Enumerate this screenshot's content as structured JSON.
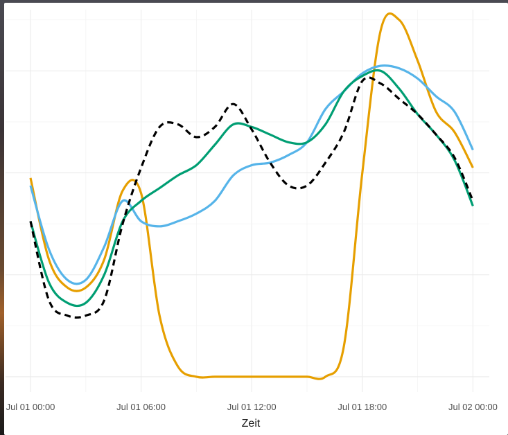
{
  "chart_data": {
    "type": "line",
    "title": "",
    "xlabel": "Zeit",
    "ylabel": "",
    "x_ticks": [
      "Jul 01 00:00",
      "Jul 01 06:00",
      "Jul 01 12:00",
      "Jul 01 18:00",
      "Jul 02 00:00"
    ],
    "x": [
      0,
      1,
      2,
      3,
      4,
      5,
      6,
      7,
      8,
      9,
      10,
      11,
      12,
      13,
      14,
      15,
      16,
      17,
      18,
      19,
      20,
      21,
      22,
      23,
      24
    ],
    "xlim": [
      0,
      25
    ],
    "ylim": [
      -0.3,
      7.2
    ],
    "grid": true,
    "legend": "none",
    "series": [
      {
        "color": "#e69f00",
        "dash": "solid",
        "values": [
          3.9,
          2.3,
          1.75,
          1.75,
          2.3,
          3.65,
          3.6,
          1.2,
          0.2,
          0.0,
          0.0,
          0.0,
          0.0,
          0.0,
          0.0,
          0.0,
          0.0,
          0.6,
          4.0,
          6.8,
          7.0,
          6.2,
          5.2,
          4.8,
          4.1
        ]
      },
      {
        "color": "#56b4e9",
        "dash": "solid",
        "values": [
          3.75,
          2.5,
          1.9,
          1.9,
          2.55,
          3.45,
          3.05,
          2.95,
          3.05,
          3.2,
          3.45,
          3.95,
          4.15,
          4.2,
          4.35,
          4.6,
          5.25,
          5.6,
          5.95,
          6.1,
          6.05,
          5.85,
          5.5,
          5.2,
          4.45
        ]
      },
      {
        "color": "#009e73",
        "dash": "solid",
        "values": [
          3.05,
          1.85,
          1.45,
          1.45,
          2.0,
          3.05,
          3.45,
          3.7,
          3.95,
          4.15,
          4.55,
          4.95,
          4.9,
          4.75,
          4.6,
          4.6,
          4.95,
          5.6,
          5.9,
          6.0,
          5.65,
          5.15,
          4.75,
          4.25,
          3.35
        ]
      },
      {
        "color": "#000000",
        "dash": "dashed",
        "values": [
          3.05,
          1.5,
          1.2,
          1.2,
          1.5,
          3.0,
          4.1,
          4.9,
          4.95,
          4.7,
          4.9,
          5.35,
          4.85,
          4.2,
          3.75,
          3.75,
          4.2,
          4.8,
          5.8,
          5.75,
          5.45,
          5.15,
          4.75,
          4.3,
          3.45
        ]
      }
    ]
  }
}
